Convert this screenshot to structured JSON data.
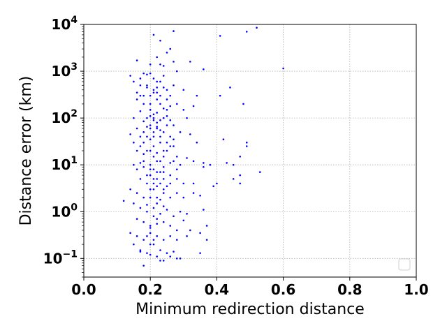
{
  "chart_data": {
    "type": "scatter",
    "title": "",
    "xlabel": "Minimum redirection distance",
    "ylabel": "Distance error (km)",
    "xlim": [
      0.0,
      1.0
    ],
    "ylim": [
      0.04,
      10000
    ],
    "yscale": "log",
    "grid": true,
    "legend": "bottom-right (empty)",
    "x_ticks": [
      "0.0",
      "0.2",
      "0.4",
      "0.6",
      "0.8",
      "1.0"
    ],
    "y_ticks": [
      {
        "value": 0.1,
        "base": "10",
        "exp": "−1"
      },
      {
        "value": 1,
        "base": "10",
        "exp": "0"
      },
      {
        "value": 10,
        "base": "10",
        "exp": "1"
      },
      {
        "value": 100,
        "base": "10",
        "exp": "2"
      },
      {
        "value": 1000,
        "base": "10",
        "exp": "3"
      },
      {
        "value": 10000,
        "base": "10",
        "exp": "4"
      }
    ],
    "point_color": "#0000ff",
    "series": [
      {
        "points": [
          [
            0.21,
            6000
          ],
          [
            0.27,
            7200
          ],
          [
            0.41,
            5700
          ],
          [
            0.49,
            7000
          ],
          [
            0.52,
            8500
          ],
          [
            0.6,
            1150
          ],
          [
            0.23,
            4500
          ],
          [
            0.25,
            2500
          ],
          [
            0.22,
            2000
          ],
          [
            0.16,
            1700
          ],
          [
            0.26,
            3000
          ],
          [
            0.23,
            1400
          ],
          [
            0.24,
            1300
          ],
          [
            0.2,
            1400
          ],
          [
            0.28,
            1000
          ],
          [
            0.32,
            1600
          ],
          [
            0.36,
            1100
          ],
          [
            0.27,
            1600
          ],
          [
            0.14,
            800
          ],
          [
            0.15,
            600
          ],
          [
            0.17,
            700
          ],
          [
            0.18,
            900
          ],
          [
            0.19,
            500
          ],
          [
            0.2,
            300
          ],
          [
            0.21,
            700
          ],
          [
            0.22,
            350
          ],
          [
            0.23,
            600
          ],
          [
            0.24,
            800
          ],
          [
            0.25,
            400
          ],
          [
            0.26,
            300
          ],
          [
            0.27,
            500
          ],
          [
            0.19,
            850
          ],
          [
            0.21,
            350
          ],
          [
            0.22,
            250
          ],
          [
            0.23,
            200
          ],
          [
            0.2,
            150
          ],
          [
            0.18,
            200
          ],
          [
            0.17,
            300
          ],
          [
            0.16,
            250
          ],
          [
            0.19,
            100
          ],
          [
            0.21,
            120
          ],
          [
            0.22,
            130
          ],
          [
            0.23,
            90
          ],
          [
            0.24,
            160
          ],
          [
            0.25,
            110
          ],
          [
            0.26,
            180
          ],
          [
            0.28,
            200
          ],
          [
            0.3,
            150
          ],
          [
            0.31,
            100
          ],
          [
            0.33,
            180
          ],
          [
            0.34,
            300
          ],
          [
            0.3,
            400
          ],
          [
            0.41,
            300
          ],
          [
            0.44,
            450
          ],
          [
            0.48,
            200
          ],
          [
            0.15,
            100
          ],
          [
            0.16,
            60
          ],
          [
            0.18,
            50
          ],
          [
            0.2,
            70
          ],
          [
            0.21,
            40
          ],
          [
            0.22,
            60
          ],
          [
            0.24,
            50
          ],
          [
            0.26,
            40
          ],
          [
            0.27,
            70
          ],
          [
            0.29,
            50
          ],
          [
            0.32,
            45
          ],
          [
            0.14,
            45
          ],
          [
            0.15,
            30
          ],
          [
            0.17,
            25
          ],
          [
            0.19,
            20
          ],
          [
            0.21,
            25
          ],
          [
            0.23,
            30
          ],
          [
            0.25,
            20
          ],
          [
            0.27,
            25
          ],
          [
            0.34,
            30
          ],
          [
            0.42,
            35
          ],
          [
            0.47,
            15
          ],
          [
            0.49,
            30
          ],
          [
            0.49,
            25
          ],
          [
            0.15,
            10
          ],
          [
            0.16,
            8
          ],
          [
            0.18,
            12
          ],
          [
            0.2,
            10
          ],
          [
            0.21,
            8
          ],
          [
            0.22,
            12
          ],
          [
            0.24,
            9
          ],
          [
            0.26,
            11
          ],
          [
            0.28,
            8
          ],
          [
            0.29,
            10
          ],
          [
            0.31,
            14
          ],
          [
            0.33,
            12
          ],
          [
            0.36,
            11
          ],
          [
            0.38,
            10
          ],
          [
            0.36,
            9
          ],
          [
            0.43,
            11
          ],
          [
            0.45,
            10
          ],
          [
            0.47,
            6
          ],
          [
            0.53,
            7
          ],
          [
            0.17,
            5
          ],
          [
            0.19,
            6
          ],
          [
            0.21,
            4
          ],
          [
            0.22,
            5
          ],
          [
            0.24,
            7
          ],
          [
            0.26,
            4
          ],
          [
            0.28,
            5
          ],
          [
            0.3,
            4
          ],
          [
            0.33,
            4
          ],
          [
            0.4,
            4
          ],
          [
            0.39,
            3.5
          ],
          [
            0.45,
            5
          ],
          [
            0.47,
            4
          ],
          [
            0.14,
            3
          ],
          [
            0.16,
            2.5
          ],
          [
            0.18,
            2
          ],
          [
            0.2,
            3
          ],
          [
            0.22,
            2
          ],
          [
            0.24,
            3
          ],
          [
            0.26,
            2
          ],
          [
            0.28,
            2.5
          ],
          [
            0.3,
            2
          ],
          [
            0.33,
            2.5
          ],
          [
            0.35,
            2.2
          ],
          [
            0.12,
            1.7
          ],
          [
            0.15,
            1.5
          ],
          [
            0.17,
            1.2
          ],
          [
            0.19,
            1
          ],
          [
            0.21,
            1.2
          ],
          [
            0.23,
            0.9
          ],
          [
            0.25,
            1.1
          ],
          [
            0.27,
            0.8
          ],
          [
            0.29,
            1
          ],
          [
            0.31,
            0.9
          ],
          [
            0.36,
            1.1
          ],
          [
            0.16,
            0.7
          ],
          [
            0.18,
            0.6
          ],
          [
            0.2,
            0.5
          ],
          [
            0.22,
            0.7
          ],
          [
            0.24,
            0.6
          ],
          [
            0.26,
            0.5
          ],
          [
            0.28,
            0.4
          ],
          [
            0.3,
            0.65
          ],
          [
            0.32,
            0.4
          ],
          [
            0.37,
            0.5
          ],
          [
            0.14,
            0.35
          ],
          [
            0.16,
            0.3
          ],
          [
            0.18,
            0.25
          ],
          [
            0.2,
            0.35
          ],
          [
            0.22,
            0.3
          ],
          [
            0.24,
            0.25
          ],
          [
            0.26,
            0.3
          ],
          [
            0.28,
            0.25
          ],
          [
            0.31,
            0.3
          ],
          [
            0.35,
            0.35
          ],
          [
            0.37,
            0.25
          ],
          [
            0.15,
            0.2
          ],
          [
            0.17,
            0.15
          ],
          [
            0.19,
            0.13
          ],
          [
            0.21,
            0.2
          ],
          [
            0.23,
            0.15
          ],
          [
            0.25,
            0.13
          ],
          [
            0.27,
            0.14
          ],
          [
            0.29,
            0.1
          ],
          [
            0.35,
            0.13
          ],
          [
            0.17,
            0.14
          ],
          [
            0.2,
            0.12
          ],
          [
            0.22,
            0.11
          ],
          [
            0.24,
            0.09
          ],
          [
            0.26,
            0.11
          ],
          [
            0.28,
            0.1
          ],
          [
            0.18,
            0.07
          ],
          [
            0.23,
            0.09
          ],
          [
            0.2,
            0.2
          ],
          [
            0.21,
            0.25
          ],
          [
            0.19,
            0.3
          ],
          [
            0.2,
            0.45
          ],
          [
            0.22,
            0.55
          ],
          [
            0.21,
            0.8
          ],
          [
            0.19,
            1.4
          ],
          [
            0.2,
            2
          ],
          [
            0.21,
            3
          ],
          [
            0.2,
            6
          ],
          [
            0.21,
            15
          ],
          [
            0.2,
            20
          ],
          [
            0.22,
            18
          ],
          [
            0.2,
            35
          ],
          [
            0.21,
            50
          ],
          [
            0.22,
            80
          ],
          [
            0.2,
            200
          ],
          [
            0.21,
            400
          ],
          [
            0.22,
            600
          ],
          [
            0.2,
            900
          ],
          [
            0.23,
            12
          ],
          [
            0.24,
            15
          ],
          [
            0.22,
            7
          ],
          [
            0.23,
            4
          ],
          [
            0.24,
            2.5
          ],
          [
            0.22,
            1.5
          ],
          [
            0.23,
            1.8
          ],
          [
            0.24,
            1.3
          ],
          [
            0.18,
            17
          ],
          [
            0.17,
            40
          ],
          [
            0.19,
            65
          ],
          [
            0.18,
            85
          ],
          [
            0.17,
            140
          ],
          [
            0.18,
            300
          ],
          [
            0.19,
            450
          ],
          [
            0.16,
            20
          ],
          [
            0.16,
            350
          ],
          [
            0.17,
            500
          ],
          [
            0.25,
            70
          ],
          [
            0.26,
            90
          ],
          [
            0.25,
            250
          ],
          [
            0.24,
            450
          ],
          [
            0.27,
            35
          ],
          [
            0.28,
            15
          ],
          [
            0.27,
            12
          ],
          [
            0.26,
            6
          ],
          [
            0.25,
            3.5
          ],
          [
            0.24,
            5
          ],
          [
            0.23,
            40
          ],
          [
            0.24,
            100
          ],
          [
            0.25,
            150
          ],
          [
            0.23,
            300
          ],
          [
            0.22,
            450
          ],
          [
            0.21,
            100
          ],
          [
            0.2,
            60
          ],
          [
            0.19,
            40
          ],
          [
            0.18,
            30
          ],
          [
            0.2,
            8
          ],
          [
            0.21,
            5
          ],
          [
            0.22,
            3.5
          ],
          [
            0.19,
            4
          ],
          [
            0.18,
            9
          ],
          [
            0.17,
            11
          ],
          [
            0.23,
            7
          ],
          [
            0.24,
            20
          ],
          [
            0.25,
            30
          ],
          [
            0.26,
            25
          ],
          [
            0.23,
            55
          ],
          [
            0.22,
            65
          ],
          [
            0.21,
            90
          ],
          [
            0.2,
            110
          ]
        ]
      }
    ]
  }
}
